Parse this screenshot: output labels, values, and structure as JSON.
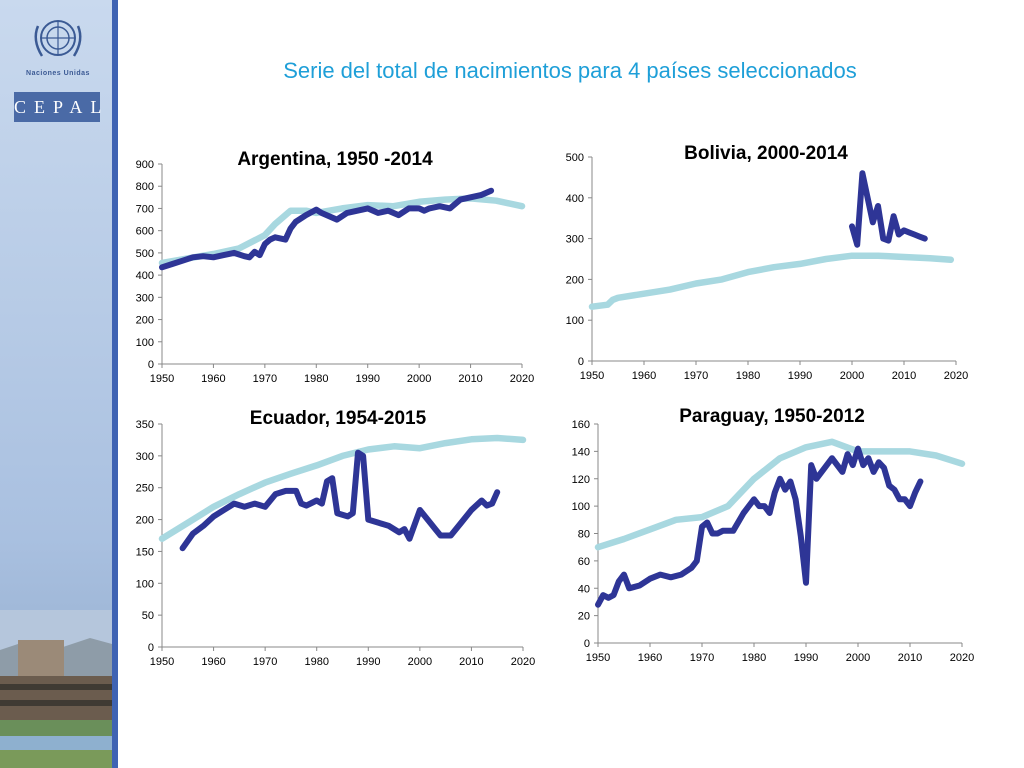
{
  "slide_title": "Serie del total de nacimientos para 4 países seleccionados",
  "branding": {
    "org": "Naciones Unidas",
    "logo_text": "CEPAL"
  },
  "colors": {
    "observed": "#2e3596",
    "projected": "#a8d8e0",
    "title": "#1e9fd8"
  },
  "chart_data": [
    {
      "type": "line",
      "title": "Argentina, 1950 -2014",
      "xlim": [
        1950,
        2020
      ],
      "ylim": [
        0,
        900
      ],
      "xticks": [
        "1950",
        "1960",
        "1970",
        "1980",
        "1990",
        "2000",
        "2010",
        "2020"
      ],
      "yticks": [
        "0",
        "100",
        "200",
        "300",
        "400",
        "500",
        "600",
        "700",
        "800",
        "900"
      ],
      "series": [
        {
          "role": "observed",
          "x": [
            1950,
            1952,
            1954,
            1956,
            1958,
            1960,
            1962,
            1964,
            1966,
            1967,
            1968,
            1969,
            1970,
            1971,
            1972,
            1974,
            1975,
            1976,
            1978,
            1980,
            1981,
            1982,
            1984,
            1986,
            1988,
            1990,
            1992,
            1994,
            1996,
            1998,
            2000,
            2001,
            2002,
            2004,
            2006,
            2008,
            2010,
            2012,
            2014
          ],
          "y": [
            435,
            450,
            465,
            480,
            485,
            480,
            490,
            500,
            485,
            480,
            505,
            490,
            540,
            560,
            570,
            560,
            610,
            640,
            670,
            695,
            680,
            670,
            650,
            680,
            690,
            700,
            680,
            690,
            670,
            700,
            700,
            690,
            700,
            710,
            700,
            740,
            750,
            760,
            780
          ]
        },
        {
          "role": "projected",
          "x": [
            1950,
            1955,
            1960,
            1965,
            1970,
            1972,
            1975,
            1978,
            1980,
            1985,
            1990,
            1995,
            2000,
            2005,
            2010,
            2015,
            2020
          ],
          "y": [
            455,
            475,
            495,
            520,
            580,
            630,
            690,
            690,
            680,
            700,
            715,
            710,
            730,
            740,
            745,
            735,
            710
          ]
        }
      ]
    },
    {
      "type": "line",
      "title": "Bolivia, 2000-2014",
      "xlim": [
        1950,
        2020
      ],
      "ylim": [
        0,
        500
      ],
      "xticks": [
        "1950",
        "1960",
        "1970",
        "1980",
        "1990",
        "2000",
        "2010",
        "2020"
      ],
      "yticks": [
        "0",
        "100",
        "200",
        "300",
        "400",
        "500"
      ],
      "series": [
        {
          "role": "observed",
          "x": [
            2000,
            2001,
            2002,
            2003,
            2004,
            2005,
            2006,
            2007,
            2008,
            2009,
            2010,
            2011,
            2012,
            2013,
            2014
          ],
          "y": [
            330,
            285,
            460,
            400,
            340,
            380,
            300,
            295,
            355,
            310,
            320,
            315,
            310,
            305,
            300
          ]
        },
        {
          "role": "projected",
          "x": [
            1950,
            1953,
            1954,
            1955,
            1960,
            1965,
            1970,
            1975,
            1980,
            1985,
            1990,
            1995,
            2000,
            2005,
            2010,
            2015,
            2019
          ],
          "y": [
            133,
            138,
            150,
            155,
            165,
            175,
            190,
            200,
            218,
            230,
            238,
            250,
            258,
            258,
            255,
            252,
            248
          ]
        }
      ]
    },
    {
      "type": "line",
      "title": "Ecuador, 1954-2015",
      "xlim": [
        1950,
        2020
      ],
      "ylim": [
        0,
        350
      ],
      "xticks": [
        "1950",
        "1960",
        "1970",
        "1980",
        "1990",
        "2000",
        "2010",
        "2020"
      ],
      "yticks": [
        "0",
        "50",
        "100",
        "150",
        "200",
        "250",
        "300",
        "350"
      ],
      "series": [
        {
          "role": "observed",
          "x": [
            1954,
            1956,
            1958,
            1960,
            1962,
            1964,
            1966,
            1968,
            1970,
            1972,
            1974,
            1976,
            1977,
            1978,
            1980,
            1981,
            1982,
            1983,
            1984,
            1986,
            1987,
            1988,
            1989,
            1990,
            1992,
            1994,
            1996,
            1997,
            1998,
            2000,
            2002,
            2003,
            2004,
            2006,
            2008,
            2010,
            2012,
            2013,
            2014,
            2015
          ],
          "y": [
            155,
            178,
            190,
            205,
            215,
            225,
            220,
            225,
            220,
            240,
            245,
            245,
            225,
            222,
            230,
            225,
            260,
            265,
            210,
            205,
            210,
            305,
            300,
            200,
            195,
            190,
            180,
            185,
            170,
            215,
            195,
            185,
            175,
            175,
            195,
            215,
            230,
            222,
            225,
            243
          ]
        },
        {
          "role": "projected",
          "x": [
            1950,
            1955,
            1960,
            1965,
            1970,
            1975,
            1980,
            1985,
            1990,
            1995,
            2000,
            2005,
            2010,
            2015,
            2020
          ],
          "y": [
            170,
            195,
            220,
            240,
            258,
            272,
            285,
            300,
            310,
            315,
            312,
            320,
            326,
            328,
            325
          ]
        }
      ]
    },
    {
      "type": "line",
      "title": "Paraguay, 1950-2012",
      "xlim": [
        1950,
        2020
      ],
      "ylim": [
        0,
        160
      ],
      "xticks": [
        "1950",
        "1960",
        "1970",
        "1980",
        "1990",
        "2000",
        "2010",
        "2020"
      ],
      "yticks": [
        "0",
        "20",
        "40",
        "60",
        "80",
        "100",
        "120",
        "140",
        "160"
      ],
      "series": [
        {
          "role": "observed",
          "x": [
            1950,
            1951,
            1952,
            1953,
            1954,
            1955,
            1956,
            1958,
            1960,
            1962,
            1964,
            1966,
            1968,
            1969,
            1970,
            1971,
            1972,
            1973,
            1974,
            1976,
            1978,
            1980,
            1981,
            1982,
            1983,
            1984,
            1985,
            1986,
            1987,
            1988,
            1989,
            1990,
            1991,
            1992,
            1993,
            1994,
            1995,
            1996,
            1997,
            1998,
            1999,
            2000,
            2001,
            2002,
            2003,
            2004,
            2005,
            2006,
            2007,
            2008,
            2009,
            2010,
            2011,
            2012
          ],
          "y": [
            28,
            35,
            33,
            35,
            45,
            50,
            40,
            42,
            47,
            50,
            48,
            50,
            55,
            60,
            85,
            88,
            80,
            80,
            82,
            82,
            95,
            105,
            100,
            100,
            95,
            110,
            120,
            112,
            118,
            105,
            78,
            44,
            130,
            120,
            125,
            130,
            135,
            130,
            125,
            138,
            130,
            142,
            130,
            135,
            125,
            132,
            128,
            115,
            112,
            105,
            105,
            100,
            110,
            118
          ]
        },
        {
          "role": "projected",
          "x": [
            1950,
            1955,
            1960,
            1965,
            1970,
            1975,
            1980,
            1985,
            1990,
            1995,
            2000,
            2005,
            2010,
            2015,
            2020
          ],
          "y": [
            70,
            76,
            83,
            90,
            92,
            100,
            120,
            135,
            143,
            147,
            140,
            140,
            140,
            137,
            131
          ]
        }
      ]
    }
  ]
}
